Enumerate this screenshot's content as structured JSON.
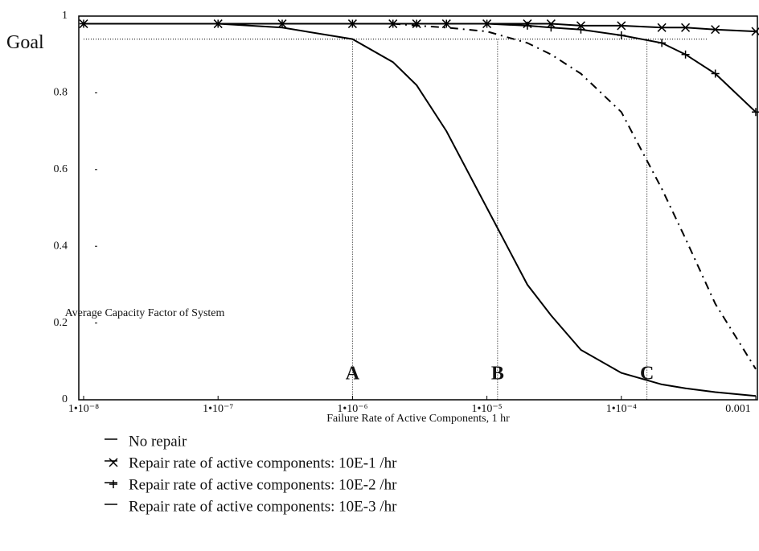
{
  "chart_data": {
    "type": "line",
    "xscale": "log",
    "y_label": "Average Capacity Factor of System",
    "x_label": "Failure Rate of Active Components, 1 hr",
    "x": [
      1e-08,
      1e-07,
      3e-07,
      1e-06,
      2e-06,
      3e-06,
      5e-06,
      1e-05,
      2e-05,
      3e-05,
      5e-05,
      0.0001,
      0.0002,
      0.0003,
      0.0005,
      0.001
    ],
    "series": [
      {
        "name": "No repair",
        "color": "#000000",
        "style": "solid",
        "marker": "none",
        "values": [
          0.98,
          0.98,
          0.97,
          0.94,
          0.88,
          0.82,
          0.7,
          0.5,
          0.3,
          0.22,
          0.13,
          0.07,
          0.04,
          0.03,
          0.02,
          0.01
        ]
      },
      {
        "name": "Repair rate of active components: 10E-1 /hr",
        "color": "#000000",
        "style": "solid",
        "marker": "x",
        "values": [
          0.98,
          0.98,
          0.98,
          0.98,
          0.98,
          0.98,
          0.98,
          0.98,
          0.98,
          0.98,
          0.975,
          0.975,
          0.97,
          0.97,
          0.965,
          0.96
        ]
      },
      {
        "name": "Repair rate of active components: 10E-2 /hr",
        "color": "#000000",
        "style": "solid",
        "marker": "plus",
        "values": [
          0.98,
          0.98,
          0.98,
          0.98,
          0.98,
          0.98,
          0.98,
          0.98,
          0.975,
          0.97,
          0.965,
          0.95,
          0.93,
          0.9,
          0.85,
          0.75
        ]
      },
      {
        "name": "Repair rate of active components: 10E-3 /hr",
        "color": "#000000",
        "style": "dash",
        "marker": "none",
        "values": [
          0.98,
          0.98,
          0.98,
          0.98,
          0.98,
          0.975,
          0.97,
          0.96,
          0.93,
          0.9,
          0.85,
          0.75,
          0.55,
          0.42,
          0.25,
          0.08
        ]
      }
    ],
    "goal": {
      "label": "Goal",
      "value": 0.94
    },
    "markers": [
      {
        "label": "A",
        "x": 1e-06
      },
      {
        "label": "B",
        "x": 1.2e-05
      },
      {
        "label": "C",
        "x": 0.000155
      }
    ],
    "xlim": [
      1e-08,
      0.001
    ],
    "xticks": [
      {
        "value": 1e-08,
        "label": "1•10⁻⁸"
      },
      {
        "value": 1e-07,
        "label": "1•10⁻⁷"
      },
      {
        "value": 1e-06,
        "label": "1•10⁻⁶"
      },
      {
        "value": 1e-05,
        "label": "1•10⁻⁵"
      },
      {
        "value": 0.0001,
        "label": "1•10⁻⁴"
      },
      {
        "value": 0.001,
        "label": "0.001"
      }
    ],
    "ylim": [
      0,
      1
    ],
    "yticks": [
      0,
      0.2,
      0.4,
      0.6,
      0.8,
      1
    ]
  }
}
